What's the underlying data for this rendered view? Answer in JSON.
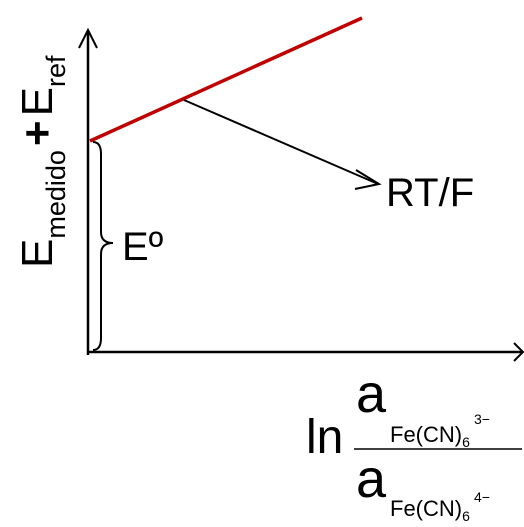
{
  "diagram": {
    "y_axis_label": {
      "main": "E",
      "sub1": "medido",
      "plus": "+",
      "main2": "E",
      "sub2": "ref"
    },
    "slope_label": "RT/F",
    "intercept_label": "Eº",
    "x_axis_label": {
      "prefix": "ln",
      "numerator": {
        "symbol": "a",
        "subscript": "Fe(CN)",
        "index_sub": "6",
        "charge_sup": "3−"
      },
      "denominator": {
        "symbol": "a",
        "subscript": "Fe(CN)",
        "index_sub": "6",
        "charge_sup": "4−"
      }
    },
    "colors": {
      "line": "#c00000",
      "axes": "#000000",
      "text": "#000000"
    },
    "icons": {
      "y_axis_arrow": "arrow-up-icon",
      "x_axis_arrow": "arrow-right-icon",
      "pointer_arrow": "arrow-right-icon",
      "intercept_brace": "brace-icon"
    }
  }
}
